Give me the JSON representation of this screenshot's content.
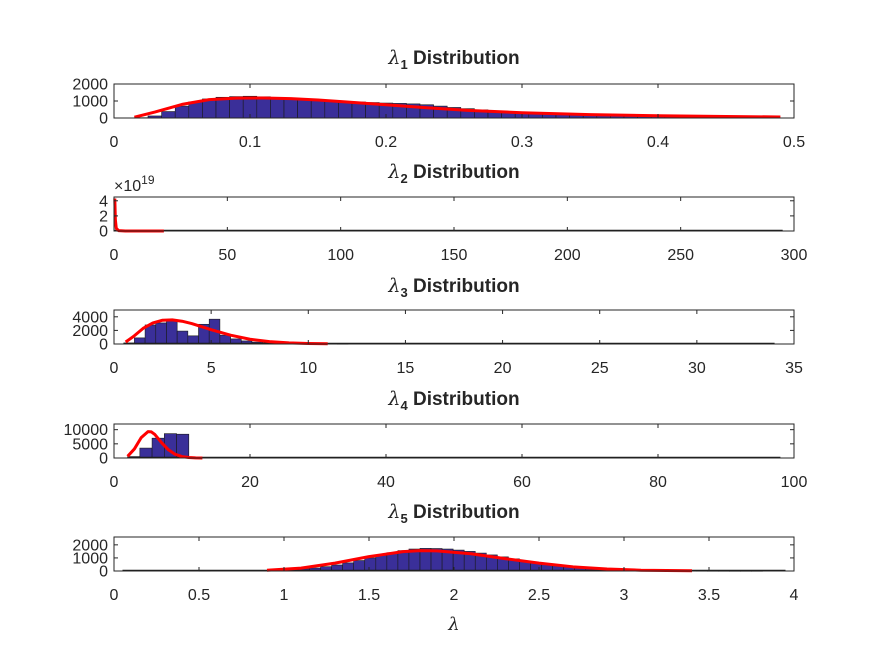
{
  "figure": {
    "background": "#ffffff",
    "bar_color": "#3a2f99",
    "bar_edge": "#1a1a1a",
    "fit_color": "#ff0000",
    "xlabel": "λ"
  },
  "chart_data": [
    {
      "type": "bar",
      "title_symbol": "λ",
      "title_sub": "1",
      "title_rest": " Distribution",
      "xlim": [
        0,
        0.5
      ],
      "ylim": [
        0,
        2000
      ],
      "xticks": [
        0,
        0.1,
        0.2,
        0.3,
        0.4,
        0.5
      ],
      "xtick_labels": [
        "0",
        "0.1",
        "0.2",
        "0.3",
        "0.4",
        "0.5"
      ],
      "yticks": [
        0,
        1000,
        2000
      ],
      "ytick_labels": [
        "0",
        "1000",
        "2000"
      ],
      "exponent_label": null,
      "bins": {
        "start": 0.015,
        "width": 0.01,
        "counts": [
          20,
          120,
          380,
          700,
          950,
          1120,
          1220,
          1260,
          1280,
          1250,
          1200,
          1150,
          1100,
          1040,
          990,
          960,
          940,
          910,
          880,
          860,
          830,
          780,
          700,
          620,
          550,
          480,
          420,
          370,
          330,
          300,
          270,
          250,
          230,
          210,
          190,
          170,
          155,
          140,
          125,
          110,
          100,
          90,
          80,
          70,
          62,
          55,
          48
        ]
      },
      "fit": {
        "x": [
          0.015,
          0.03,
          0.05,
          0.07,
          0.09,
          0.11,
          0.13,
          0.15,
          0.17,
          0.2,
          0.23,
          0.26,
          0.3,
          0.35,
          0.4,
          0.45,
          0.49
        ],
        "y": [
          50,
          350,
          800,
          1080,
          1170,
          1180,
          1140,
          1060,
          950,
          780,
          600,
          450,
          310,
          200,
          130,
          90,
          60
        ]
      }
    },
    {
      "type": "bar",
      "title_symbol": "λ",
      "title_sub": "2",
      "title_rest": " Distribution",
      "xlim": [
        0,
        300
      ],
      "ylim": [
        0,
        4.5
      ],
      "xticks": [
        0,
        50,
        100,
        150,
        200,
        250,
        300
      ],
      "xtick_labels": [
        "0",
        "50",
        "100",
        "150",
        "200",
        "250",
        "300"
      ],
      "yticks": [
        0,
        2,
        4
      ],
      "ytick_labels": [
        "0",
        "2",
        "4"
      ],
      "exponent_label": {
        "base": "×10",
        "exp": "19"
      },
      "bins": {
        "start": 0,
        "width": 1.5,
        "counts": []
      },
      "baseline": {
        "x0": 0,
        "x1": 295
      },
      "fit": {
        "x": [
          0.35,
          0.6,
          1.0,
          2.0,
          5.0,
          10.0,
          22.0
        ],
        "y": [
          4.3,
          1.5,
          0.35,
          0.05,
          0.005,
          0.001,
          0.0
        ]
      }
    },
    {
      "type": "bar",
      "title_symbol": "λ",
      "title_sub": "3",
      "title_rest": " Distribution",
      "xlim": [
        0,
        35
      ],
      "ylim": [
        0,
        5000
      ],
      "xticks": [
        0,
        5,
        10,
        15,
        20,
        25,
        30,
        35
      ],
      "xtick_labels": [
        "0",
        "5",
        "10",
        "15",
        "20",
        "25",
        "30",
        "35"
      ],
      "yticks": [
        0,
        2000,
        4000
      ],
      "ytick_labels": [
        "0",
        "2000",
        "4000"
      ],
      "exponent_label": null,
      "bins": {
        "start": 0.5,
        "width": 0.55,
        "counts": [
          150,
          900,
          2800,
          3100,
          3550,
          1900,
          1200,
          2900,
          3650,
          1300,
          750,
          450,
          280,
          180,
          110,
          70,
          45,
          28,
          18,
          12,
          8
        ]
      },
      "baseline": {
        "x0": 0.5,
        "x1": 34
      },
      "fit": {
        "x": [
          0.6,
          1.0,
          1.5,
          2.0,
          2.5,
          3.0,
          3.5,
          4.0,
          5.0,
          6.0,
          7.0,
          8.0,
          9.0,
          10.0,
          11.0
        ],
        "y": [
          300,
          1100,
          2300,
          3100,
          3500,
          3550,
          3350,
          3000,
          2100,
          1300,
          700,
          350,
          160,
          70,
          30
        ]
      }
    },
    {
      "type": "bar",
      "title_symbol": "λ",
      "title_sub": "4",
      "title_rest": " Distribution",
      "xlim": [
        0,
        100
      ],
      "ylim": [
        0,
        12000
      ],
      "xticks": [
        0,
        20,
        40,
        60,
        80,
        100
      ],
      "xtick_labels": [
        "0",
        "20",
        "40",
        "60",
        "80",
        "100"
      ],
      "yticks": [
        0,
        5000,
        10000
      ],
      "ytick_labels": [
        "0",
        "5000",
        "10000"
      ],
      "exponent_label": null,
      "bins": {
        "start": 2.0,
        "width": 1.8,
        "counts": [
          500,
          3500,
          7000,
          8600,
          8400,
          300,
          60
        ]
      },
      "baseline": {
        "x0": 2,
        "x1": 98
      },
      "fit": {
        "x": [
          2.0,
          3.0,
          4.0,
          5.0,
          5.5,
          6.0,
          7.0,
          8.0,
          9.0,
          10.0,
          11.0,
          12.0,
          13.0
        ],
        "y": [
          600,
          3200,
          7200,
          9300,
          9200,
          8300,
          5400,
          2900,
          1300,
          500,
          180,
          60,
          20
        ]
      }
    },
    {
      "type": "bar",
      "title_symbol": "λ",
      "title_sub": "5",
      "title_rest": " Distribution",
      "xlim": [
        0,
        4
      ],
      "ylim": [
        0,
        2600
      ],
      "xticks": [
        0,
        0.5,
        1,
        1.5,
        2,
        2.5,
        3,
        3.5,
        4
      ],
      "xtick_labels": [
        "0",
        "0.5",
        "1",
        "1.5",
        "2",
        "2.5",
        "3",
        "3.5",
        "4"
      ],
      "yticks": [
        0,
        1000,
        2000
      ],
      "ytick_labels": [
        "0",
        "1000",
        "2000"
      ],
      "exponent_label": null,
      "bins": {
        "start": 0.5,
        "width": 0.065,
        "counts": [
          5,
          8,
          12,
          18,
          25,
          35,
          50,
          75,
          110,
          160,
          230,
          330,
          460,
          620,
          800,
          1000,
          1200,
          1400,
          1560,
          1680,
          1730,
          1720,
          1680,
          1600,
          1500,
          1370,
          1230,
          1080,
          930,
          780,
          640,
          510,
          400,
          310,
          230,
          170,
          125,
          90,
          65,
          45,
          32,
          22,
          15,
          10,
          7,
          5,
          3,
          2,
          1,
          1,
          1,
          0,
          0,
          0
        ]
      },
      "baseline": {
        "x0": 0.05,
        "x1": 3.95
      },
      "fit": {
        "x": [
          0.9,
          1.1,
          1.3,
          1.5,
          1.7,
          1.8,
          1.9,
          2.1,
          2.3,
          2.5,
          2.7,
          2.9,
          3.1,
          3.4
        ],
        "y": [
          60,
          220,
          600,
          1100,
          1480,
          1560,
          1540,
          1320,
          950,
          600,
          320,
          150,
          60,
          15
        ]
      }
    }
  ]
}
